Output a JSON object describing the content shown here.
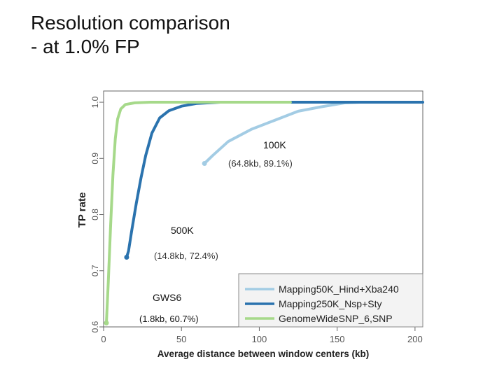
{
  "slide": {
    "title_line1": "Resolution comparison",
    "title_line2": "- at 1.0% FP"
  },
  "chart_data": {
    "type": "line",
    "xlabel": "Average distance between window centers (kb)",
    "ylabel": "TP rate",
    "xlim": [
      0,
      205
    ],
    "ylim": [
      0.6,
      1.02
    ],
    "xticks": [
      "0",
      "50",
      "100",
      "150",
      "200"
    ],
    "yticks": [
      "0.6",
      "0.7",
      "0.8",
      "0.9",
      "1.0"
    ],
    "grid": false,
    "legend_position": "bottom-right",
    "series": [
      {
        "name": "Mapping50K_Hind+Xba240",
        "color": "#a3cce4",
        "points": [
          [
            64.8,
            0.891
          ],
          [
            70,
            0.905
          ],
          [
            80,
            0.93
          ],
          [
            95,
            0.952
          ],
          [
            110,
            0.968
          ],
          [
            125,
            0.984
          ],
          [
            140,
            0.992
          ],
          [
            155,
            0.999
          ],
          [
            165,
            1.0
          ],
          [
            205,
            1.0
          ]
        ],
        "start": [
          64.8,
          0.891
        ]
      },
      {
        "name": "Mapping250K_Nsp+Sty",
        "color": "#2b73ae",
        "points": [
          [
            14.8,
            0.724
          ],
          [
            16,
            0.735
          ],
          [
            18,
            0.77
          ],
          [
            21,
            0.82
          ],
          [
            24,
            0.865
          ],
          [
            27,
            0.905
          ],
          [
            31,
            0.945
          ],
          [
            36,
            0.972
          ],
          [
            42,
            0.985
          ],
          [
            50,
            0.993
          ],
          [
            60,
            0.998
          ],
          [
            75,
            1.0
          ],
          [
            205,
            1.0
          ]
        ],
        "start": [
          14.8,
          0.724
        ]
      },
      {
        "name": "GenomeWideSNP_6,SNP",
        "color": "#a6d98a",
        "points": [
          [
            1.8,
            0.607
          ],
          [
            3,
            0.68
          ],
          [
            4.5,
            0.78
          ],
          [
            6,
            0.87
          ],
          [
            7.5,
            0.935
          ],
          [
            9,
            0.97
          ],
          [
            11,
            0.988
          ],
          [
            14,
            0.996
          ],
          [
            20,
            0.999
          ],
          [
            30,
            1.0
          ],
          [
            120,
            1.0
          ]
        ],
        "start": [
          1.8,
          0.607
        ]
      }
    ],
    "annotations": [
      {
        "label": "100K",
        "detail": "(64.8kb, 89.1%)"
      },
      {
        "label": "500K",
        "detail": "(14.8kb, 72.4%)"
      },
      {
        "label": "GWS6",
        "detail": "(1.8kb, 60.7%)"
      }
    ]
  }
}
